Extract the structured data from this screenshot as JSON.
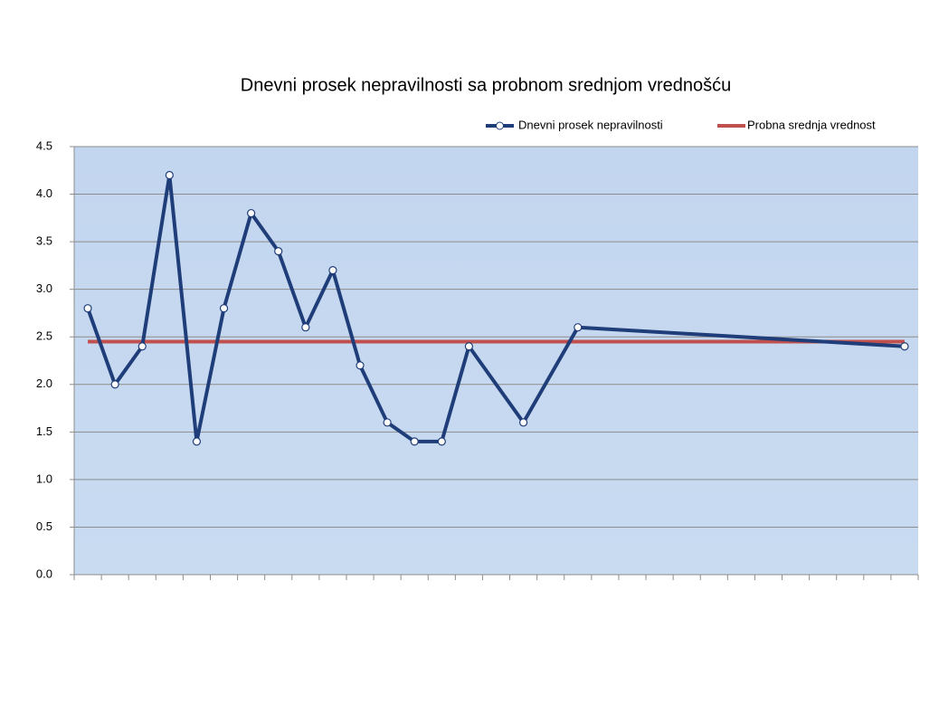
{
  "chart_data": {
    "type": "line",
    "title": "Dnevni prosek nepravilnosti sa probnom srednjom vrednošću",
    "xlim": [
      0.5,
      31.5
    ],
    "xticks": [
      0.5,
      1.5,
      2.5,
      3.5,
      4.5,
      5.5,
      6.5,
      7.5,
      8.5,
      9.5,
      10.5,
      11.5,
      12.5,
      13.5,
      14.5,
      15.5,
      16.5,
      17.5,
      18.5,
      19.5,
      20.5,
      21.5,
      22.5,
      23.5,
      24.5,
      25.5,
      26.5,
      27.5,
      28.5,
      29.5,
      30.5,
      31.5
    ],
    "ylim": [
      0,
      4.5
    ],
    "yticks": [
      {
        "value": 0,
        "label": "0.0"
      },
      0.5,
      {
        "value": 1,
        "label": "1.0"
      },
      1.5,
      {
        "value": 2,
        "label": "2.0"
      },
      2.5,
      {
        "value": 3,
        "label": "3.0"
      },
      3.5,
      {
        "value": 4,
        "label": "4.0"
      },
      4.5
    ],
    "grid": true,
    "legend": "top-right",
    "series": [
      {
        "name": "Dnevni prosek nepravilnosti",
        "color": "#1f3d78",
        "markers": true,
        "x": [
          1,
          2,
          3,
          4,
          5,
          6,
          7,
          8,
          9,
          10,
          11,
          12,
          13,
          14,
          15,
          17,
          19,
          31
        ],
        "values": [
          2.8,
          2.0,
          2.4,
          4.2,
          1.4,
          2.8,
          3.8,
          3.4,
          2.6,
          3.2,
          2.2,
          1.6,
          1.4,
          1.4,
          2.4,
          1.6,
          2.6,
          2.4
        ]
      },
      {
        "name": "Probna srednja vrednost",
        "color": "#c0504d",
        "markers": false,
        "x": [
          1,
          31
        ],
        "values": [
          2.45,
          2.45
        ]
      }
    ]
  }
}
